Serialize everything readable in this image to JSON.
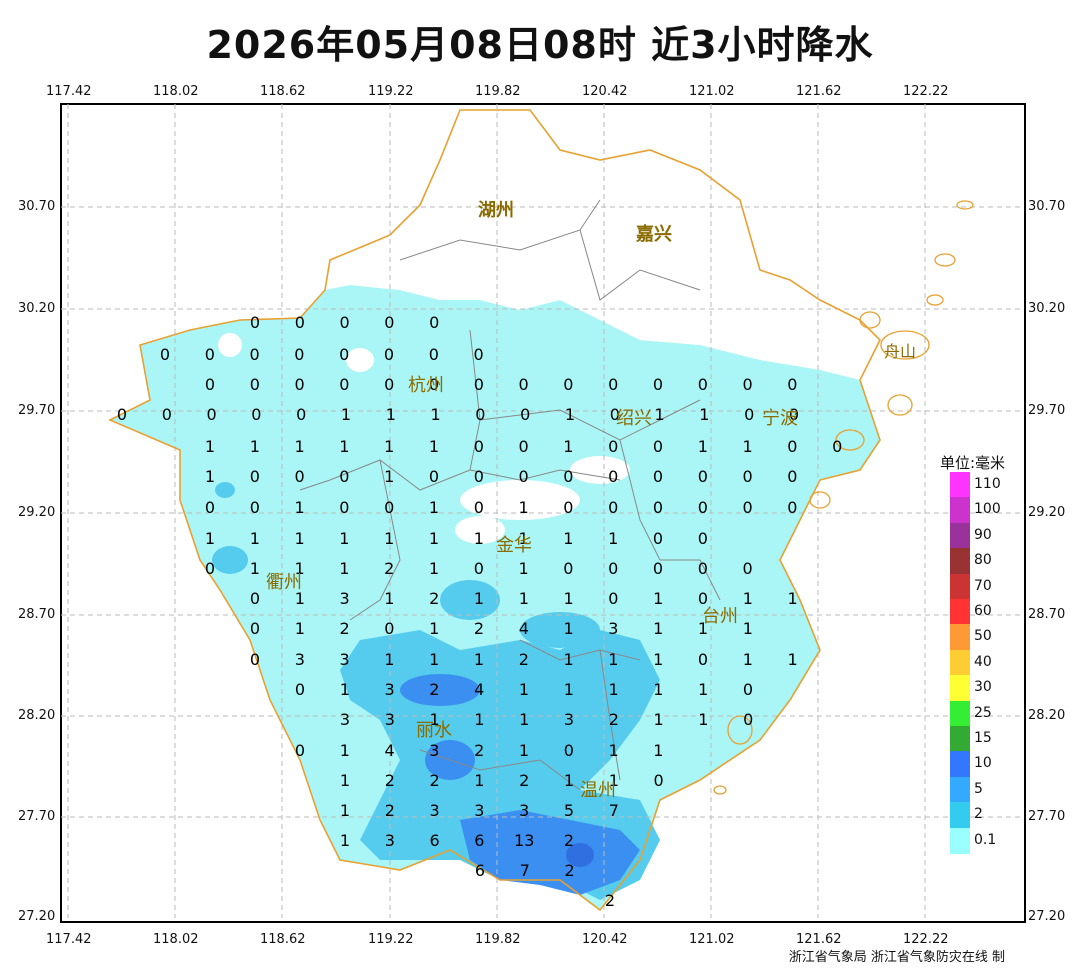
{
  "title": "2026年05月08日08时  近3小时降水",
  "credit": "浙江省气象局 浙江省气象防灾在线 制",
  "axes": {
    "lon_ticks": [
      "117.42",
      "118.02",
      "118.62",
      "119.22",
      "119.82",
      "120.42",
      "121.02",
      "121.62",
      "122.22"
    ],
    "lat_ticks": [
      "30.70",
      "30.20",
      "29.70",
      "29.20",
      "28.70",
      "28.20",
      "27.70",
      "27.20"
    ]
  },
  "legend": {
    "title": "单位:毫米",
    "items": [
      {
        "label": "110",
        "color": "#ff33ff"
      },
      {
        "label": "100",
        "color": "#cc33cc"
      },
      {
        "label": "90",
        "color": "#993399"
      },
      {
        "label": "80",
        "color": "#993333"
      },
      {
        "label": "70",
        "color": "#cc3333"
      },
      {
        "label": "60",
        "color": "#ff3333"
      },
      {
        "label": "50",
        "color": "#ff9933"
      },
      {
        "label": "40",
        "color": "#ffcc33"
      },
      {
        "label": "30",
        "color": "#ffff33"
      },
      {
        "label": "25",
        "color": "#33ee33"
      },
      {
        "label": "15",
        "color": "#33aa33"
      },
      {
        "label": "10",
        "color": "#3377ff"
      },
      {
        "label": "5",
        "color": "#33aaff"
      },
      {
        "label": "2",
        "color": "#33ccee"
      },
      {
        "label": "0.1",
        "color": "#99ffff"
      }
    ]
  },
  "cities": [
    {
      "name": "湖州"
    },
    {
      "name": "嘉兴"
    },
    {
      "name": "杭州"
    },
    {
      "name": "绍兴"
    },
    {
      "name": "宁波"
    },
    {
      "name": "金华"
    },
    {
      "name": "衢州"
    },
    {
      "name": "台州"
    },
    {
      "name": "丽水"
    },
    {
      "name": "温州"
    },
    {
      "name": "舟山"
    }
  ],
  "station_values": [
    {
      "row": "30.20",
      "values": [
        "0",
        "0",
        "0",
        "0",
        "0"
      ]
    },
    {
      "row": "30.00",
      "values": [
        "0",
        "0",
        "0",
        "0",
        "0",
        "0",
        "0",
        "0"
      ]
    },
    {
      "row": "29.85",
      "values": [
        "0",
        "0",
        "0",
        "0",
        "0",
        "0",
        "0",
        "0",
        "0",
        "0",
        "0",
        "0",
        "0",
        "0"
      ]
    },
    {
      "row": "29.70",
      "values": [
        "0",
        "0",
        "0",
        "0",
        "0",
        "1",
        "1",
        "1",
        "0",
        "0",
        "1",
        "0",
        "1",
        "1",
        "0",
        "0"
      ]
    },
    {
      "row": "29.55",
      "values": [
        "1",
        "1",
        "1",
        "1",
        "1",
        "1",
        "0",
        "0",
        "1",
        "0",
        "0",
        "1",
        "1",
        "0",
        "0"
      ]
    },
    {
      "row": "29.40",
      "values": [
        "1",
        "0",
        "0",
        "0",
        "1",
        "0",
        "0",
        "0",
        "0",
        "0",
        "0",
        "0",
        "0",
        "0"
      ]
    },
    {
      "row": "29.20",
      "values": [
        "0",
        "0",
        "1",
        "0",
        "0",
        "1",
        "0",
        "1",
        "0",
        "0",
        "0",
        "0",
        "0",
        "0"
      ]
    },
    {
      "row": "29.00",
      "values": [
        "1",
        "1",
        "1",
        "1",
        "1",
        "1",
        "1",
        "1",
        "1",
        "1",
        "0",
        "0"
      ]
    },
    {
      "row": "28.85",
      "values": [
        "0",
        "1",
        "1",
        "1",
        "2",
        "1",
        "0",
        "1",
        "0",
        "0",
        "0",
        "0",
        "0"
      ]
    },
    {
      "row": "28.70",
      "values": [
        "0",
        "1",
        "3",
        "1",
        "2",
        "1",
        "1",
        "1",
        "0",
        "1",
        "0",
        "1",
        "1"
      ]
    },
    {
      "row": "28.55",
      "values": [
        "0",
        "1",
        "2",
        "0",
        "1",
        "2",
        "4",
        "1",
        "3",
        "1",
        "1",
        "1"
      ]
    },
    {
      "row": "28.40",
      "values": [
        "0",
        "3",
        "3",
        "1",
        "1",
        "1",
        "2",
        "1",
        "1",
        "1",
        "0",
        "1",
        "1"
      ]
    },
    {
      "row": "28.25",
      "values": [
        "0",
        "1",
        "3",
        "2",
        "4",
        "1",
        "1",
        "1",
        "1",
        "1",
        "0"
      ]
    },
    {
      "row": "28.10",
      "values": [
        "3",
        "3",
        "1",
        "1",
        "1",
        "3",
        "2",
        "1",
        "1",
        "0"
      ]
    },
    {
      "row": "27.95",
      "values": [
        "0",
        "1",
        "4",
        "3",
        "2",
        "1",
        "0",
        "1",
        "1"
      ]
    },
    {
      "row": "27.80",
      "values": [
        "1",
        "2",
        "2",
        "1",
        "2",
        "1",
        "1",
        "0"
      ]
    },
    {
      "row": "27.70",
      "values": [
        "1",
        "2",
        "3",
        "3",
        "3",
        "5",
        "7"
      ]
    },
    {
      "row": "27.55",
      "values": [
        "1",
        "3",
        "6",
        "6",
        "13",
        "2"
      ]
    },
    {
      "row": "27.40",
      "values": [
        "6",
        "7",
        "2"
      ]
    },
    {
      "row": "27.25",
      "values": [
        "2"
      ]
    }
  ]
}
